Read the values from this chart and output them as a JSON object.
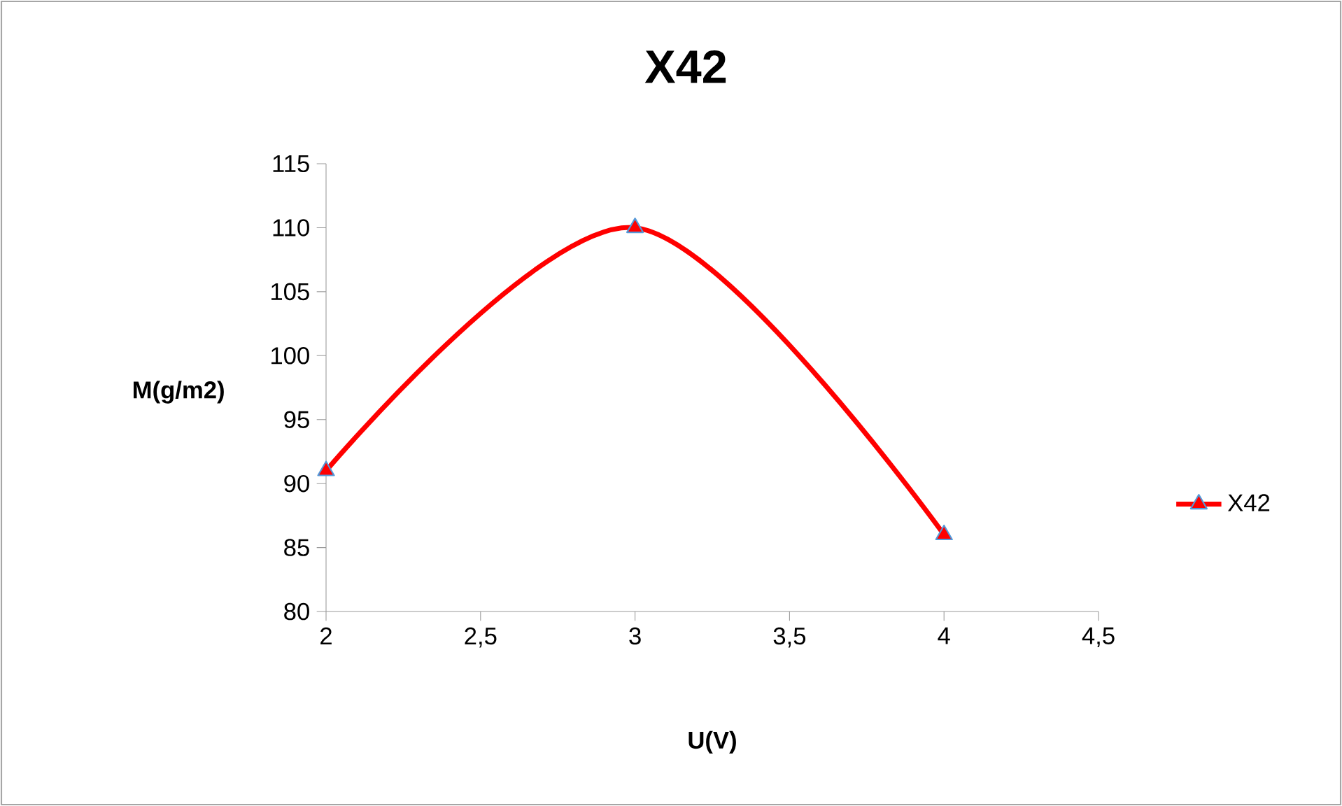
{
  "chart_data": {
    "type": "line",
    "title": "X42",
    "xlabel": "U(V)",
    "ylabel": "M(g/m2)",
    "x": [
      2,
      3,
      4
    ],
    "series": [
      {
        "name": "X42",
        "color": "#ff0000",
        "values": [
          91,
          110,
          86
        ]
      }
    ],
    "xlim": [
      2,
      4.5
    ],
    "xticks": [
      2,
      {
        "value": 2.5,
        "label": "2,5"
      },
      3,
      {
        "value": 3.5,
        "label": "3,5"
      },
      4,
      {
        "value": 4.5,
        "label": "4,5"
      }
    ],
    "ylim": [
      80,
      115
    ],
    "yticks": [
      80,
      85,
      90,
      95,
      100,
      105,
      110,
      115
    ],
    "grid": false,
    "legend": "right",
    "marker": "triangle",
    "line_style": "solid"
  }
}
